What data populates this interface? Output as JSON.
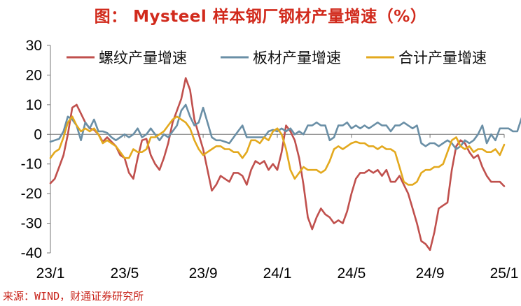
{
  "title": "图： Mysteel 样本钢厂钢材产量增速（%）",
  "source": "来源：WIND，财通证券研究所",
  "chart_data": {
    "type": "line",
    "title": "图： Mysteel 样本钢厂钢材产量增速（%）",
    "xlabel": "",
    "ylabel": "",
    "ylim": [
      -40,
      30
    ],
    "yticks": [
      "30",
      "20",
      "10",
      "0",
      "-10",
      "-20",
      "-30",
      "-40"
    ],
    "xticks": [
      {
        "label": "23/1",
        "week": 0
      },
      {
        "label": "23/5",
        "week": 17
      },
      {
        "label": "23/9",
        "week": 35
      },
      {
        "label": "24/1",
        "week": 52
      },
      {
        "label": "24/5",
        "week": 69
      },
      {
        "label": "24/9",
        "week": 87
      },
      {
        "label": "25/1",
        "week": 104
      }
    ],
    "legend_position": "top",
    "series": [
      {
        "name": "螺纹产量增速",
        "color": "#c0504d",
        "values": [
          -16.5,
          -15,
          -11,
          -7,
          0,
          9,
          10,
          7,
          4,
          2,
          1.5,
          0,
          -2.5,
          -1,
          -2.5,
          -4,
          -7,
          -8,
          -13,
          -15,
          -8,
          -2,
          -1.5,
          -7,
          -10,
          -12,
          -8,
          -3,
          4,
          8,
          12,
          19,
          15,
          5,
          0,
          -5,
          -12,
          -19,
          -17,
          -14,
          -15,
          -16,
          -13,
          -13,
          -14,
          -17,
          -12,
          -9,
          -10,
          -9,
          -12,
          -10,
          -12,
          -6,
          3,
          1,
          -2,
          -8,
          -17,
          -28,
          -32,
          -28,
          -25,
          -27,
          -28,
          -30,
          -29,
          -30,
          -26,
          -20,
          -15,
          -13,
          -13,
          -12,
          -13,
          -12,
          -14,
          -12,
          -16,
          -16,
          -14,
          -17,
          -20,
          -25,
          -30,
          -36,
          -37,
          -39,
          -33,
          -25,
          -24,
          -23,
          -12,
          -4,
          -2,
          -3,
          -6,
          -8,
          -7,
          -11,
          -14,
          -16,
          -16,
          -16,
          -17.5
        ]
      },
      {
        "name": "板材产量增速",
        "color": "#6a8fa6",
        "values": [
          -2.5,
          -2,
          -1.5,
          1,
          6,
          5,
          3,
          -2,
          4,
          2,
          5,
          1,
          1,
          0.5,
          -1,
          -2,
          -1,
          0,
          -1,
          0,
          2,
          -1,
          0,
          2,
          0,
          -2,
          0,
          -1,
          1,
          3,
          8,
          10,
          6,
          3,
          4,
          9,
          4,
          -1,
          -2,
          -2,
          -2.5,
          -3,
          -1,
          1,
          3,
          -1,
          -1,
          -1,
          -1,
          -1,
          1,
          1.5,
          1,
          2,
          1,
          2,
          0,
          1,
          0,
          3,
          3,
          4,
          3,
          3,
          -2,
          -1,
          3,
          3,
          4,
          2,
          3,
          2,
          3,
          2,
          3,
          4,
          3,
          3,
          1,
          3,
          3,
          4,
          3,
          2,
          3,
          -3,
          -4,
          -3,
          -3,
          -4,
          -3,
          -2,
          -3,
          -5,
          -4,
          -2,
          -3,
          -2,
          0,
          3,
          -3,
          0,
          -2,
          2,
          2,
          2,
          1,
          1,
          5.5
        ]
      },
      {
        "name": "合计产量增速",
        "color": "#e3a91e",
        "values": [
          -8,
          -6,
          -5,
          -1,
          4,
          6,
          3,
          1,
          2,
          1,
          2,
          0,
          -3,
          -2,
          -3,
          -4,
          -6,
          -8,
          -8,
          -5,
          -6,
          -6,
          -5,
          -1,
          -1,
          0,
          1,
          3,
          5,
          6,
          5,
          4,
          2,
          -2,
          -5,
          -7,
          -6,
          -5,
          -4,
          -4,
          -5,
          -5,
          -6,
          -6,
          -8,
          -6,
          -2,
          -2,
          -3,
          -1,
          -2,
          1,
          2,
          0,
          -5,
          -12,
          -15,
          -13,
          -11,
          -12,
          -12,
          -12,
          -13,
          -12,
          -9,
          -5,
          -4,
          -5,
          -4,
          -3,
          -2.5,
          -3,
          -3,
          -4,
          -4,
          -5,
          -4,
          -5,
          -5,
          -6,
          -11,
          -16,
          -17,
          -17,
          -16,
          -13,
          -12,
          -12,
          -11,
          -11,
          -10,
          -6,
          -2,
          -1,
          -4,
          -5,
          -4,
          -6,
          -5,
          -5,
          -6,
          -6,
          -5,
          -7,
          -3.5
        ]
      }
    ]
  }
}
